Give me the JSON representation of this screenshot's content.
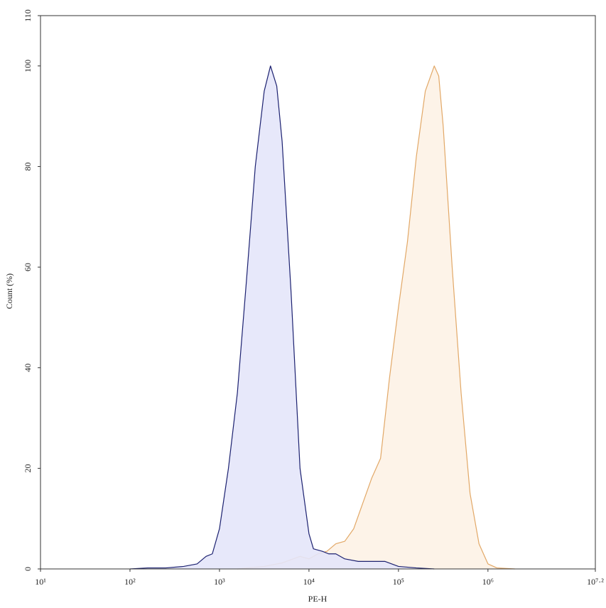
{
  "chart_data": {
    "type": "area",
    "xlabel": "PE-H",
    "ylabel": "Count (%)",
    "xscale": "log",
    "xlim": [
      10,
      15848931.92
    ],
    "xticks": [
      {
        "value": 10,
        "label": "10¹"
      },
      {
        "value": 100,
        "label": "10²"
      },
      {
        "value": 1000,
        "label": "10³"
      },
      {
        "value": 10000,
        "label": "10⁴"
      },
      {
        "value": 100000,
        "label": "10⁵"
      },
      {
        "value": 1000000,
        "label": "10⁶"
      },
      {
        "value": 15848931.92,
        "label": "10⁷·²"
      }
    ],
    "ylim": [
      0,
      110
    ],
    "yticks": [
      0,
      20,
      40,
      60,
      80,
      100,
      110
    ],
    "series": [
      {
        "color": "#e2a867",
        "fill": "#fdf2e6",
        "x": [
          1585,
          3162,
          5012,
          7943,
          10000,
          12589,
          15849,
          19953,
          25119,
          31623,
          39811,
          50119,
          63096,
          79433,
          100000,
          125893,
          158489,
          199526,
          251189,
          281838,
          316228,
          398107,
          501187,
          630957,
          794328,
          1000000,
          1258925,
          1995262
        ],
        "values": [
          0,
          0.5,
          1.2,
          2.5,
          2,
          3,
          3.5,
          5,
          5.5,
          8,
          13,
          18,
          22,
          38,
          52,
          65,
          82,
          95,
          100,
          98,
          88,
          60,
          35,
          15,
          5,
          1,
          0.2,
          0
        ]
      },
      {
        "color": "#1c2170",
        "fill": "#e4e6fa",
        "x": [
          100,
          158,
          251,
          398,
          562,
          708,
          832,
          1000,
          1259,
          1585,
          1995,
          2512,
          3162,
          3715,
          4365,
          5012,
          6310,
          7943,
          10000,
          11220,
          14125,
          16596,
          19953,
          25119,
          35481,
          50119,
          70795,
          100000,
          158489,
          251189
        ],
        "values": [
          0,
          0.2,
          0.2,
          0.5,
          1,
          2.5,
          3,
          8,
          20,
          35,
          57,
          80,
          95,
          100,
          96,
          85,
          55,
          20,
          7,
          4,
          3.5,
          3,
          3,
          2,
          1.5,
          1.5,
          1.5,
          0.5,
          0.2,
          0
        ]
      }
    ]
  }
}
